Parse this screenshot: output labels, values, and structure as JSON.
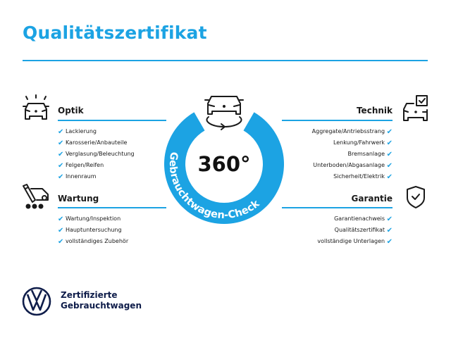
{
  "title": "Qualitätszertifikat",
  "accent_color": "#1ca3e3",
  "center": {
    "degrees": "360°",
    "ring_text": "Gebrauchtwagen-Check",
    "icon": "car-rotate-icon"
  },
  "sections": {
    "optik": {
      "heading": "Optik",
      "icon": "car-lights-icon",
      "items": [
        "Lackierung",
        "Karosserie/Anbauteile",
        "Verglasung/Beleuchtung",
        "Felgen/Reifen",
        "Innenraum"
      ]
    },
    "wartung": {
      "heading": "Wartung",
      "icon": "service-van-icon",
      "items": [
        "Wartung/Inspektion",
        "Hauptuntersuchung",
        "vollständiges Zubehör"
      ]
    },
    "technik": {
      "heading": "Technik",
      "icon": "car-checkbox-icon",
      "items": [
        "Aggregate/Antriebsstrang",
        "Lenkung/Fahrwerk",
        "Bremsanlage",
        "Unterboden/Abgasanlage",
        "Sicherheit/Elektrik"
      ]
    },
    "garantie": {
      "heading": "Garantie",
      "icon": "shield-check-icon",
      "items": [
        "Garantienachweis",
        "Qualitätszertifikat",
        "vollständige Unterlagen"
      ]
    }
  },
  "check_glyph": "✔",
  "brand": {
    "line1": "Zertifizierte",
    "line2": "Gebrauchtwagen",
    "logo": "vw-logo"
  }
}
